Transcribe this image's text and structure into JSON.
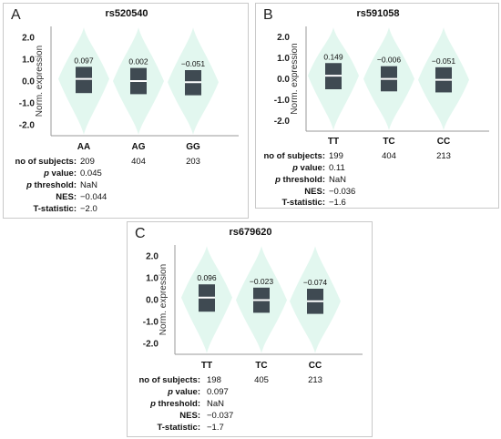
{
  "colors": {
    "violin": "#e2f7ef",
    "box": "#3f4a52",
    "median": "#ffffff",
    "axis": "#999999"
  },
  "stat_labels": {
    "subjects": "no of subjects:",
    "pvalue_p": "p",
    "pvalue_rest": " value:",
    "pthreshold_p": "p",
    "pthreshold_rest": " threshold:",
    "nes": "NES:",
    "tstat": "T-statistic:"
  },
  "panels": [
    {
      "letter": "A",
      "snp": "rs520540",
      "genotypes": [
        "AA",
        "AG",
        "GG"
      ],
      "subjects": [
        "209",
        "404",
        "203"
      ],
      "pvalue": "0.045",
      "pthreshold": "NaN",
      "nes": "−0.044",
      "tstat": "−2.0"
    },
    {
      "letter": "B",
      "snp": "rs591058",
      "genotypes": [
        "TT",
        "TC",
        "CC"
      ],
      "subjects": [
        "199",
        "404",
        "213"
      ],
      "pvalue": "0.11",
      "pthreshold": "NaN",
      "nes": "−0.036",
      "tstat": "−1.6"
    },
    {
      "letter": "C",
      "snp": "rs679620",
      "genotypes": [
        "TT",
        "TC",
        "CC"
      ],
      "subjects": [
        "198",
        "405",
        "213"
      ],
      "pvalue": "0.097",
      "pthreshold": "NaN",
      "nes": "−0.037",
      "tstat": "−1.7"
    }
  ],
  "chart_data": [
    {
      "type": "violin",
      "title": "rs520540",
      "ylabel": "Norm. expression",
      "ylim": [
        -2.5,
        2.5
      ],
      "yticks": [
        "2.0",
        "1.0",
        "0.0",
        "-1.0",
        "-2.0"
      ],
      "categories": [
        "AA",
        "AG",
        "GG"
      ],
      "medians": [
        0.097,
        0.002,
        -0.051
      ],
      "median_labels": [
        "0.097",
        "0.002",
        "−0.051"
      ],
      "q1": [
        -0.55,
        -0.6,
        -0.65
      ],
      "q3": [
        0.65,
        0.6,
        0.5
      ]
    },
    {
      "type": "violin",
      "title": "rs591058",
      "ylabel": "Norm. expression",
      "ylim": [
        -2.5,
        2.5
      ],
      "yticks": [
        "2.0",
        "1.0",
        "0.0",
        "-1.0",
        "-2.0"
      ],
      "categories": [
        "TT",
        "TC",
        "CC"
      ],
      "medians": [
        0.149,
        -0.006,
        -0.051
      ],
      "median_labels": [
        "0.149",
        "−0.006",
        "−0.051"
      ],
      "q1": [
        -0.5,
        -0.6,
        -0.65
      ],
      "q3": [
        0.75,
        0.6,
        0.55
      ]
    },
    {
      "type": "violin",
      "title": "rs679620",
      "ylabel": "Norm. expression",
      "ylim": [
        -2.5,
        2.5
      ],
      "yticks": [
        "2.0",
        "1.0",
        "0.0",
        "-1.0",
        "-2.0"
      ],
      "categories": [
        "TT",
        "TC",
        "CC"
      ],
      "medians": [
        0.096,
        -0.023,
        -0.074
      ],
      "median_labels": [
        "0.096",
        "−0.023",
        "−0.074"
      ],
      "q1": [
        -0.55,
        -0.6,
        -0.65
      ],
      "q3": [
        0.7,
        0.55,
        0.5
      ]
    }
  ]
}
